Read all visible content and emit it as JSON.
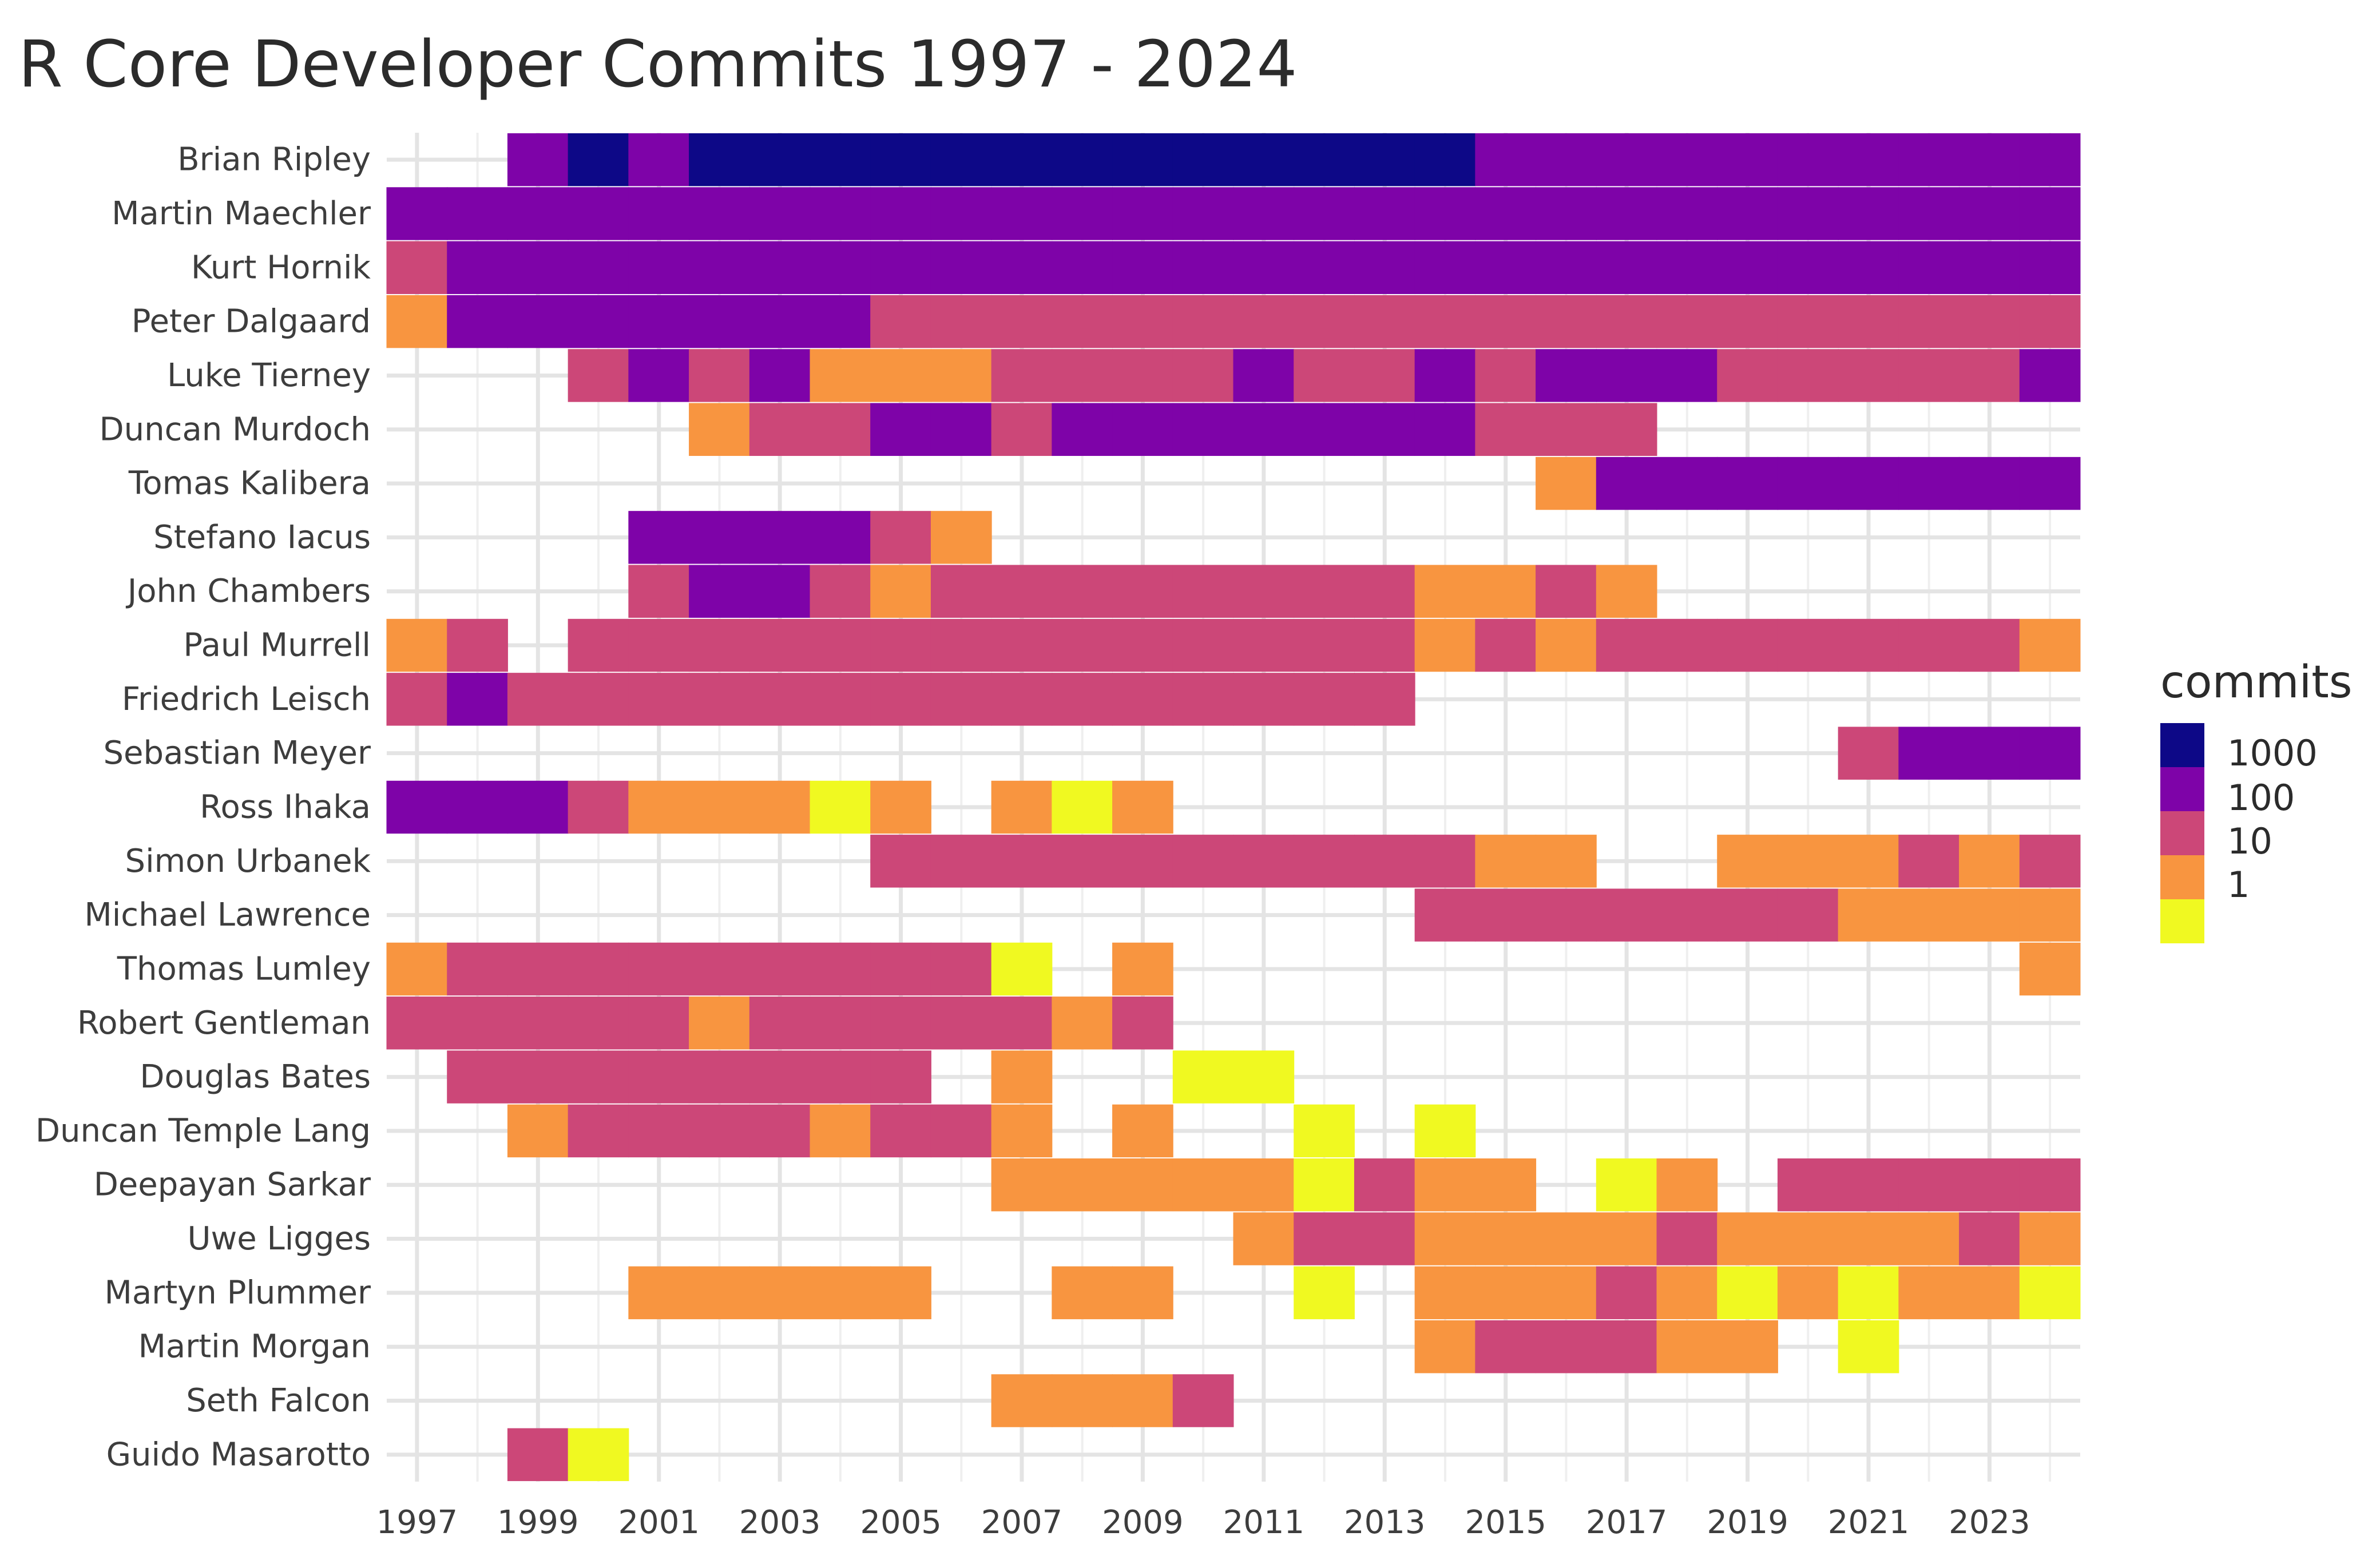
{
  "chart_data": {
    "type": "heatmap",
    "title": "R Core Developer Commits 1997 - 2024",
    "xlabel": "",
    "ylabel": "",
    "x_range": [
      1997,
      2024
    ],
    "x_tick_labels": [
      "1997",
      "1999",
      "2001",
      "2003",
      "2005",
      "2007",
      "2009",
      "2011",
      "2013",
      "2015",
      "2017",
      "2019",
      "2021",
      "2023"
    ],
    "grid": true,
    "legend_position": "right",
    "legend": {
      "title": "commits",
      "scale": "log10",
      "levels": [
        {
          "label": "1000",
          "color": "#0d0887"
        },
        {
          "label": "100",
          "color": "#7e03a8"
        },
        {
          "label": "",
          "color": "#cc4778"
        },
        {
          "label": "10",
          "color": "#f89540"
        },
        {
          "label": "1",
          "color": "#f0f921"
        }
      ],
      "display_labels": [
        "1000",
        "100",
        "10",
        "1"
      ]
    },
    "level_colors": {
      "1000": "#0d0887",
      "100": "#7e03a8",
      "10": "#cc4778",
      "5": "#f89540",
      "1": "#f0f921"
    },
    "developers": [
      {
        "name": "Brian Ripley",
        "runs": [
          [
            1999,
            1999,
            100
          ],
          [
            2000,
            2000,
            1000
          ],
          [
            2001,
            2001,
            100
          ],
          [
            2002,
            2014,
            1000
          ],
          [
            2015,
            2024,
            100
          ]
        ]
      },
      {
        "name": "Martin Maechler",
        "runs": [
          [
            1997,
            2024,
            100
          ]
        ]
      },
      {
        "name": "Kurt Hornik",
        "runs": [
          [
            1997,
            1997,
            10
          ],
          [
            1998,
            2024,
            100
          ]
        ]
      },
      {
        "name": "Peter Dalgaard",
        "runs": [
          [
            1997,
            1997,
            5
          ],
          [
            1998,
            2004,
            100
          ],
          [
            2005,
            2024,
            10
          ]
        ]
      },
      {
        "name": "Luke Tierney",
        "runs": [
          [
            2000,
            2000,
            10
          ],
          [
            2001,
            2001,
            100
          ],
          [
            2002,
            2002,
            10
          ],
          [
            2003,
            2003,
            100
          ],
          [
            2004,
            2006,
            5
          ],
          [
            2007,
            2010,
            10
          ],
          [
            2011,
            2011,
            100
          ],
          [
            2012,
            2013,
            10
          ],
          [
            2014,
            2014,
            100
          ],
          [
            2015,
            2015,
            10
          ],
          [
            2016,
            2018,
            100
          ],
          [
            2019,
            2023,
            10
          ],
          [
            2024,
            2024,
            100
          ]
        ]
      },
      {
        "name": "Duncan Murdoch",
        "runs": [
          [
            2002,
            2002,
            5
          ],
          [
            2003,
            2004,
            10
          ],
          [
            2005,
            2006,
            100
          ],
          [
            2007,
            2007,
            10
          ],
          [
            2008,
            2014,
            100
          ],
          [
            2015,
            2017,
            10
          ]
        ]
      },
      {
        "name": "Tomas Kalibera",
        "runs": [
          [
            2016,
            2016,
            5
          ],
          [
            2017,
            2024,
            100
          ]
        ]
      },
      {
        "name": "Stefano Iacus",
        "runs": [
          [
            2001,
            2004,
            100
          ],
          [
            2005,
            2005,
            10
          ],
          [
            2006,
            2006,
            5
          ]
        ]
      },
      {
        "name": "John Chambers",
        "runs": [
          [
            2001,
            2001,
            10
          ],
          [
            2002,
            2003,
            100
          ],
          [
            2004,
            2004,
            10
          ],
          [
            2005,
            2005,
            5
          ],
          [
            2006,
            2013,
            10
          ],
          [
            2014,
            2015,
            5
          ],
          [
            2016,
            2016,
            10
          ],
          [
            2017,
            2017,
            5
          ]
        ]
      },
      {
        "name": "Paul Murrell",
        "runs": [
          [
            1997,
            1997,
            5
          ],
          [
            1998,
            1998,
            10
          ],
          [
            2000,
            2013,
            10
          ],
          [
            2014,
            2014,
            5
          ],
          [
            2015,
            2015,
            10
          ],
          [
            2016,
            2016,
            5
          ],
          [
            2017,
            2023,
            10
          ],
          [
            2024,
            2024,
            5
          ]
        ]
      },
      {
        "name": "Friedrich Leisch",
        "runs": [
          [
            1997,
            1997,
            10
          ],
          [
            1998,
            1998,
            100
          ],
          [
            1999,
            2013,
            10
          ]
        ]
      },
      {
        "name": "Sebastian Meyer",
        "runs": [
          [
            2021,
            2021,
            10
          ],
          [
            2022,
            2024,
            100
          ]
        ]
      },
      {
        "name": "Ross Ihaka",
        "runs": [
          [
            1997,
            1999,
            100
          ],
          [
            2000,
            2000,
            10
          ],
          [
            2001,
            2003,
            5
          ],
          [
            2004,
            2004,
            1
          ],
          [
            2005,
            2005,
            5
          ],
          [
            2007,
            2007,
            5
          ],
          [
            2008,
            2008,
            1
          ],
          [
            2009,
            2009,
            5
          ]
        ]
      },
      {
        "name": "Simon Urbanek",
        "runs": [
          [
            2005,
            2014,
            10
          ],
          [
            2015,
            2016,
            5
          ],
          [
            2019,
            2021,
            5
          ],
          [
            2022,
            2022,
            10
          ],
          [
            2023,
            2023,
            5
          ],
          [
            2024,
            2024,
            10
          ]
        ]
      },
      {
        "name": "Michael Lawrence",
        "runs": [
          [
            2014,
            2020,
            10
          ],
          [
            2021,
            2024,
            5
          ]
        ]
      },
      {
        "name": "Thomas Lumley",
        "runs": [
          [
            1997,
            1997,
            5
          ],
          [
            1998,
            2006,
            10
          ],
          [
            2007,
            2007,
            1
          ],
          [
            2009,
            2009,
            5
          ],
          [
            2024,
            2024,
            5
          ]
        ]
      },
      {
        "name": "Robert Gentleman",
        "runs": [
          [
            1997,
            2001,
            10
          ],
          [
            2002,
            2002,
            5
          ],
          [
            2003,
            2007,
            10
          ],
          [
            2008,
            2008,
            5
          ],
          [
            2009,
            2009,
            10
          ]
        ]
      },
      {
        "name": "Douglas Bates",
        "runs": [
          [
            1998,
            2005,
            10
          ],
          [
            2007,
            2007,
            5
          ],
          [
            2010,
            2011,
            1
          ]
        ]
      },
      {
        "name": "Duncan Temple Lang",
        "runs": [
          [
            1999,
            1999,
            5
          ],
          [
            2000,
            2003,
            10
          ],
          [
            2004,
            2004,
            5
          ],
          [
            2005,
            2006,
            10
          ],
          [
            2007,
            2007,
            5
          ],
          [
            2009,
            2009,
            5
          ],
          [
            2012,
            2012,
            1
          ],
          [
            2014,
            2014,
            1
          ]
        ]
      },
      {
        "name": "Deepayan Sarkar",
        "runs": [
          [
            2007,
            2011,
            5
          ],
          [
            2012,
            2012,
            1
          ],
          [
            2013,
            2013,
            10
          ],
          [
            2014,
            2015,
            5
          ],
          [
            2017,
            2017,
            1
          ],
          [
            2018,
            2018,
            5
          ],
          [
            2020,
            2024,
            10
          ]
        ]
      },
      {
        "name": "Uwe Ligges",
        "runs": [
          [
            2011,
            2011,
            5
          ],
          [
            2012,
            2013,
            10
          ],
          [
            2014,
            2017,
            5
          ],
          [
            2018,
            2018,
            10
          ],
          [
            2019,
            2022,
            5
          ],
          [
            2023,
            2023,
            10
          ],
          [
            2024,
            2024,
            5
          ]
        ]
      },
      {
        "name": "Martyn Plummer",
        "runs": [
          [
            2001,
            2005,
            5
          ],
          [
            2008,
            2009,
            5
          ],
          [
            2012,
            2012,
            1
          ],
          [
            2014,
            2016,
            5
          ],
          [
            2017,
            2017,
            10
          ],
          [
            2018,
            2018,
            5
          ],
          [
            2019,
            2019,
            1
          ],
          [
            2020,
            2020,
            5
          ],
          [
            2021,
            2021,
            1
          ],
          [
            2022,
            2023,
            5
          ],
          [
            2024,
            2024,
            1
          ]
        ]
      },
      {
        "name": "Martin Morgan",
        "runs": [
          [
            2014,
            2014,
            5
          ],
          [
            2015,
            2017,
            10
          ],
          [
            2018,
            2019,
            5
          ],
          [
            2021,
            2021,
            1
          ]
        ]
      },
      {
        "name": "Seth Falcon",
        "runs": [
          [
            2007,
            2009,
            5
          ],
          [
            2010,
            2010,
            10
          ]
        ]
      },
      {
        "name": "Guido Masarotto",
        "runs": [
          [
            1999,
            1999,
            10
          ],
          [
            2000,
            2000,
            1
          ]
        ]
      }
    ]
  }
}
